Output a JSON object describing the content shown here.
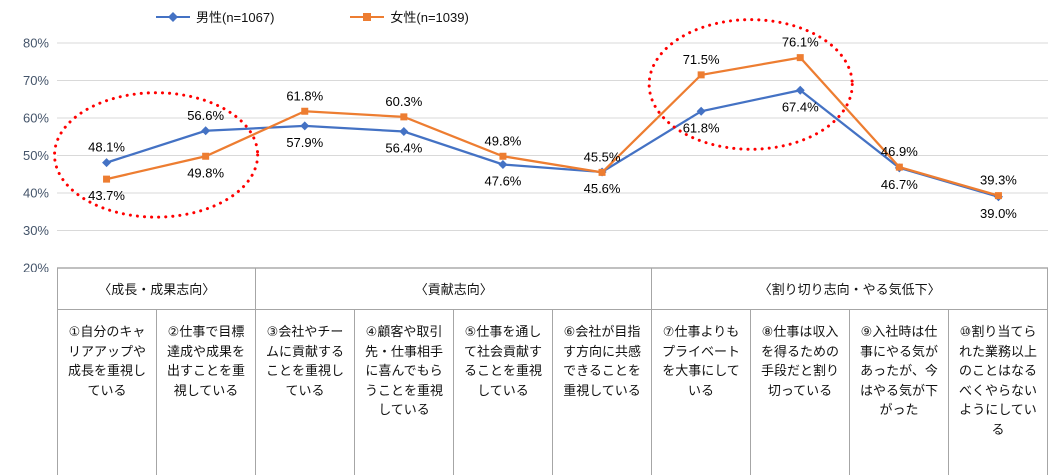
{
  "chart_data": {
    "type": "line",
    "title": "",
    "xlabel": "",
    "ylabel": "",
    "ylim": [
      20,
      80
    ],
    "ytick_step": 10,
    "ytick_labels": [
      "20%",
      "30%",
      "40%",
      "50%",
      "60%",
      "70%",
      "80%"
    ],
    "grid": true,
    "legend_position": "top",
    "groups": [
      {
        "label": "〈成長・成果志向〉",
        "span": 2
      },
      {
        "label": "〈貢献志向〉",
        "span": 4
      },
      {
        "label": "〈割り切り志向・やる気低下〉",
        "span": 4
      }
    ],
    "categories": [
      "①自分のキャリアアップや成長を重視している",
      "②仕事で目標達成や成果を出すことを重視している",
      "③会社やチームに貢献することを重視している",
      "④顧客や取引先・仕事相手に喜んでもらうことを重視している",
      "⑤仕事を通して社会貢献することを重視している",
      "⑥会社が目指す方向に共感できることを重視している",
      "⑦仕事よりもプライベートを大事にしている",
      "⑧仕事は収入を得るための手段だと割り切っている",
      "⑨入社時は仕事にやる気があったが、今はやる気が下がった",
      "⑩割り当てられた業務以上のことはなるべくやらないようにしている"
    ],
    "series": [
      {
        "id": "male",
        "name": "男性(n=1067)",
        "color": "#4472C4",
        "marker": "diamond",
        "values": [
          48.1,
          56.6,
          57.9,
          56.4,
          47.6,
          45.6,
          61.8,
          67.4,
          46.7,
          39.0
        ],
        "label_above": [
          true,
          true,
          false,
          false,
          false,
          false,
          false,
          false,
          false,
          false
        ]
      },
      {
        "id": "female",
        "name": "女性(n=1039)",
        "color": "#ED7D31",
        "marker": "square",
        "values": [
          43.7,
          49.8,
          61.8,
          60.3,
          49.8,
          45.5,
          71.5,
          76.1,
          46.9,
          39.3
        ],
        "label_above": [
          false,
          false,
          true,
          true,
          true,
          true,
          true,
          true,
          true,
          true
        ]
      }
    ],
    "annotations": [
      {
        "type": "ellipse",
        "style": "dotted",
        "color": "#FF0000",
        "around_categories": [
          0,
          1
        ]
      },
      {
        "type": "ellipse",
        "style": "dotted",
        "color": "#FF0000",
        "around_categories": [
          6,
          7
        ]
      }
    ],
    "colors": {
      "male": "#4472C4",
      "female": "#ED7D31",
      "annotation": "#FF0000",
      "gridline": "#D9D9D9",
      "axis_line": "#808080",
      "table_line": "#A6A6A6",
      "axis_label": "#44546A",
      "data_label": "#000000"
    }
  }
}
